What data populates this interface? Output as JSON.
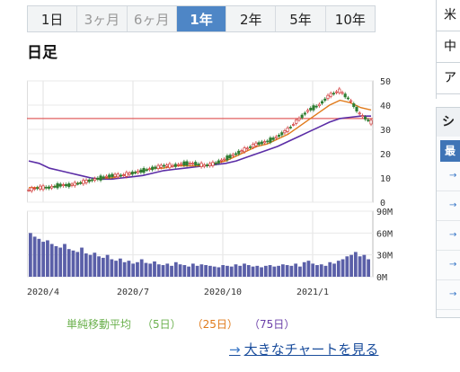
{
  "tabs": [
    {
      "label": "1日",
      "state": "normal"
    },
    {
      "label": "3ヶ月",
      "state": "muted"
    },
    {
      "label": "6ヶ月",
      "state": "muted"
    },
    {
      "label": "1年",
      "state": "active"
    },
    {
      "label": "2年",
      "state": "normal"
    },
    {
      "label": "5年",
      "state": "normal"
    },
    {
      "label": "10年",
      "state": "normal"
    }
  ],
  "chart_title": "日足",
  "legend": {
    "label": "単純移動平均",
    "ma5": "（5日）",
    "ma25": "（25日）",
    "ma75": "（75日）"
  },
  "link_text": "大きなチャートを見る",
  "link_arrow": "→",
  "side": {
    "rows": [
      "米",
      "中",
      "ア"
    ],
    "panel_head": "シ",
    "chip": "最",
    "links": [
      "→",
      "→",
      "→",
      "→",
      "→"
    ]
  },
  "colors": {
    "candle_up": "#d23c3c",
    "candle_down": "#2e7d32",
    "ma25": "#e07a1a",
    "ma75": "#5b2da6",
    "reference_line": "#e06060",
    "volume": "#5a5fa8",
    "active_tab": "#4e86c6"
  },
  "chart_data": [
    {
      "type": "line",
      "title": "",
      "x_tick_labels": [
        "2020/4",
        "2020/7",
        "2020/10",
        "2021/1"
      ],
      "y_ticks": [
        0,
        10,
        20,
        30,
        40,
        50
      ],
      "ylim": [
        0,
        50
      ],
      "reference_line": 34.5,
      "series": [
        {
          "key": "price",
          "values": [
            5,
            6,
            6,
            7,
            7,
            8,
            9,
            10,
            11,
            11,
            12,
            13,
            14,
            15,
            15,
            16,
            16,
            15,
            16,
            18,
            20,
            22,
            24,
            25,
            27,
            30,
            34,
            38,
            40,
            44,
            46,
            42,
            36,
            33
          ]
        },
        {
          "key": "ma25",
          "values": [
            6,
            6,
            6,
            7,
            7,
            8,
            9,
            10,
            10,
            11,
            12,
            13,
            14,
            14,
            15,
            15,
            15,
            15,
            16,
            17,
            19,
            21,
            23,
            24,
            26,
            28,
            31,
            34,
            37,
            40,
            42,
            41,
            39,
            38
          ]
        },
        {
          "key": "ma75",
          "values": [
            17,
            16,
            14,
            13,
            12,
            11,
            10,
            9.5,
            9.5,
            10,
            10.5,
            11,
            12,
            13,
            13.5,
            14,
            14.5,
            15,
            15.5,
            16,
            17,
            18.5,
            20,
            21.5,
            23,
            25,
            27,
            29,
            31,
            33,
            34.5,
            35,
            35.5,
            35.5
          ]
        }
      ]
    },
    {
      "type": "bar",
      "title": "",
      "y_ticks": [
        "0M",
        "30M",
        "60M",
        "90M"
      ],
      "ylim": [
        0,
        90
      ],
      "series": [
        {
          "key": "volume",
          "values": [
            60,
            55,
            52,
            48,
            50,
            45,
            42,
            40,
            45,
            38,
            36,
            34,
            40,
            32,
            30,
            33,
            28,
            26,
            30,
            24,
            22,
            25,
            20,
            22,
            18,
            20,
            24,
            19,
            18,
            21,
            17,
            16,
            18,
            15,
            20,
            17,
            16,
            14,
            18,
            15,
            17,
            16,
            15,
            14,
            13,
            16,
            15,
            14,
            17,
            15,
            18,
            16,
            14,
            15,
            13,
            15,
            16,
            14,
            15,
            17,
            16,
            15,
            18,
            14,
            20,
            22,
            18,
            16,
            17,
            15,
            20,
            18,
            22,
            24,
            28,
            30,
            34,
            28,
            30,
            24
          ]
        }
      ]
    }
  ]
}
